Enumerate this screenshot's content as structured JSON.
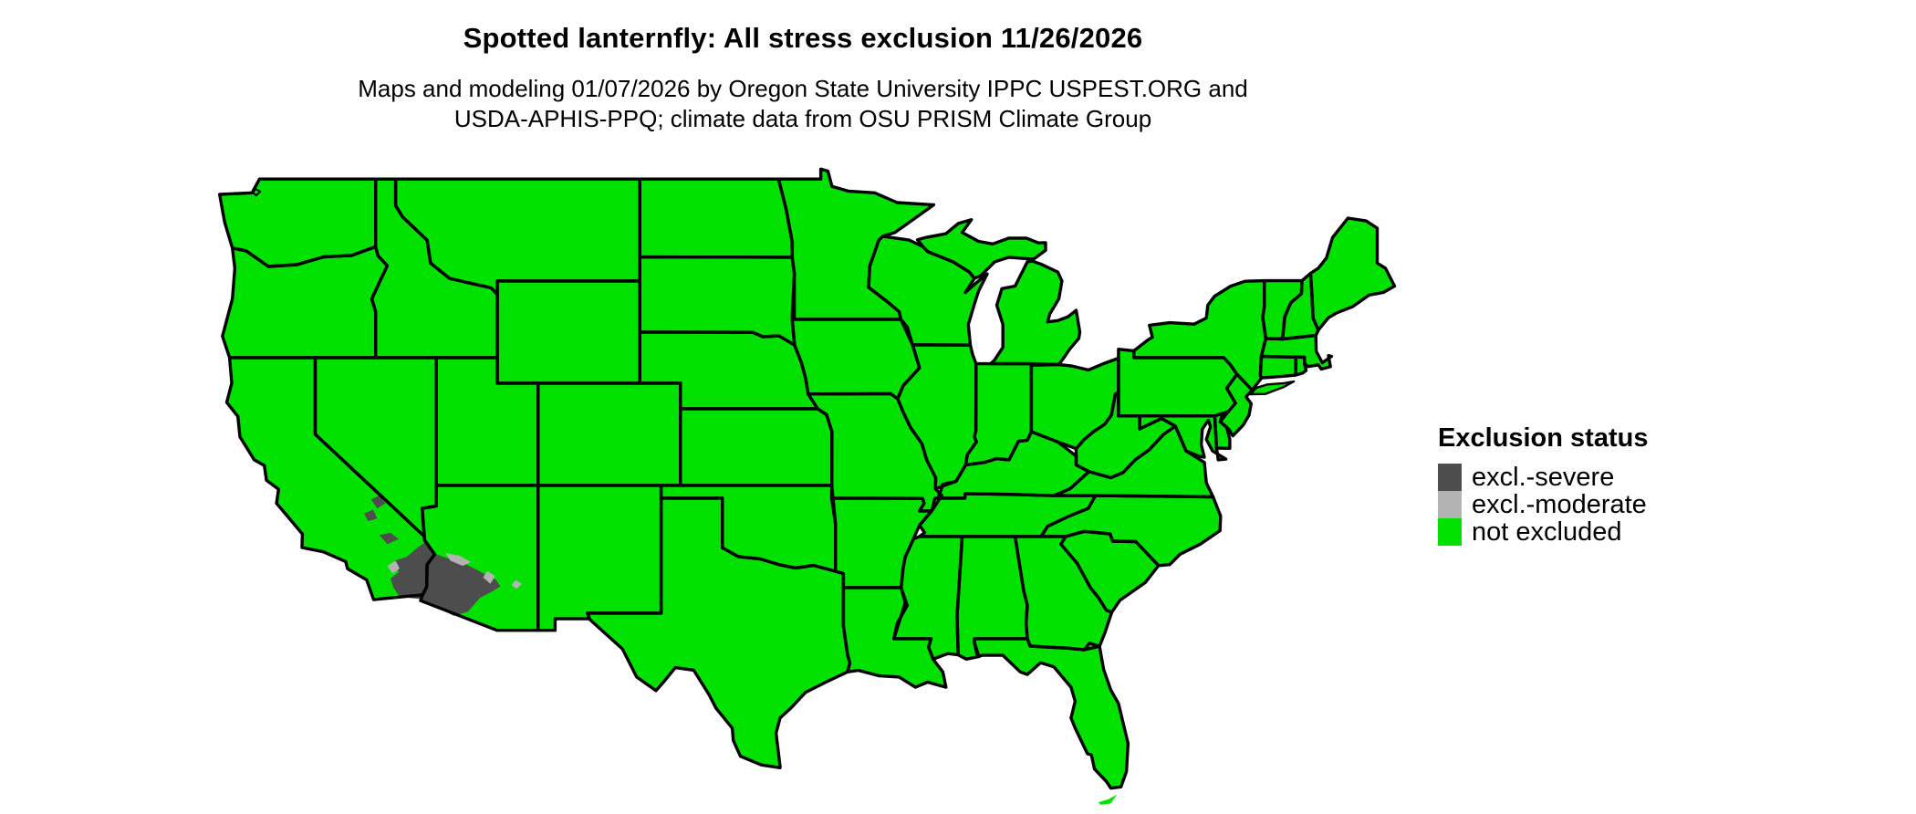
{
  "figure": {
    "title": "Spotted lanternfly: All stress exclusion 11/26/2026",
    "subtitle_line1": "Maps and modeling 01/07/2026 by Oregon State University IPPC USPEST.ORG and",
    "subtitle_line2": "USDA-APHIS-PPQ; climate data from OSU PRISM Climate Group"
  },
  "legend": {
    "title": "Exclusion status",
    "items": [
      {
        "label": "excl.-severe",
        "color": "#4D4D4D"
      },
      {
        "label": "excl.-moderate",
        "color": "#B3B3B3"
      },
      {
        "label": "not excluded",
        "color": "#00E100"
      }
    ]
  },
  "map": {
    "type": "choropleth",
    "region": "Contiguous United States (lower 48 states)",
    "land_fill": "#00E100",
    "border_color": "#000000",
    "background": "#FFFFFF",
    "status_by_area": [
      {
        "area": "Nearly all of the contiguous United States",
        "status": "not excluded"
      },
      {
        "area": "Sonoran Desert: southwestern Arizona and southeastern California (lower Colorado River / Imperial Valley, plus Mojave and Death Valley patches)",
        "status": "excl.-severe"
      },
      {
        "area": "Narrow fringe zones around the severe area in central Arizona and southeastern California, small spot in southeastern Arizona",
        "status": "excl.-moderate"
      }
    ]
  }
}
